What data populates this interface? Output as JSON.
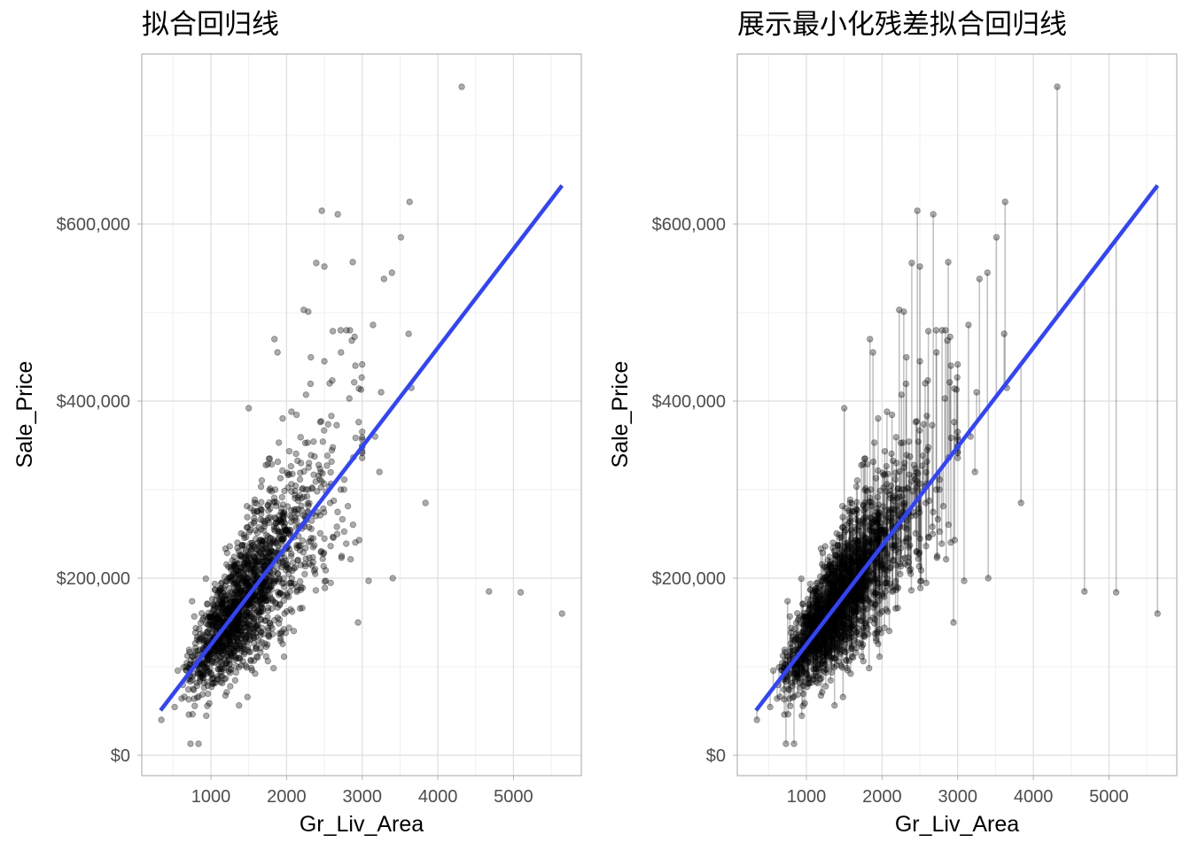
{
  "chart_data": [
    {
      "type": "scatter",
      "title": "拟合回归线",
      "xlabel": "Gr_Liv_Area",
      "ylabel": "Sale_Price",
      "show_residuals": false
    },
    {
      "type": "scatter",
      "title": "展示最小化残差拟合回归线",
      "xlabel": "Gr_Liv_Area",
      "ylabel": "Sale_Price",
      "show_residuals": true
    }
  ],
  "shared": {
    "xlim": [
      86,
      5897
    ],
    "ylim": [
      -23000,
      792000
    ],
    "xticks": [
      1000,
      2000,
      3000,
      4000,
      5000
    ],
    "xtick_labels": [
      "1000",
      "2000",
      "3000",
      "4000",
      "5000"
    ],
    "xminor": [
      500,
      1500,
      2500,
      3500,
      4500,
      5500
    ],
    "yticks": [
      0,
      200000,
      400000,
      600000
    ],
    "ytick_labels": [
      "$0",
      "$200,000",
      "$400,000",
      "$600,000"
    ],
    "yminor": [
      100000,
      300000,
      500000,
      700000
    ],
    "grid": true,
    "fit": {
      "intercept": 13290,
      "slope": 111.7,
      "x_range": [
        334,
        5642
      ],
      "color": "#3044ff"
    },
    "point_color": "#000000",
    "notable_points": [
      [
        4316,
        755000
      ],
      [
        3627,
        625000
      ],
      [
        2466,
        615000
      ],
      [
        2677,
        611000
      ],
      [
        2393,
        556000
      ],
      [
        2500,
        552000
      ],
      [
        2875,
        557000
      ],
      [
        3512,
        585000
      ],
      [
        3393,
        545000
      ],
      [
        3288,
        538000
      ],
      [
        2227,
        503000
      ],
      [
        2287,
        501000
      ],
      [
        3143,
        486000
      ],
      [
        3614,
        476000
      ],
      [
        3837,
        285000
      ],
      [
        4676,
        185000
      ],
      [
        5095,
        184000
      ],
      [
        5642,
        160000
      ],
      [
        3404,
        200000
      ],
      [
        3085,
        197000
      ],
      [
        2945,
        150000
      ],
      [
        3228,
        320000
      ],
      [
        2960,
        243000
      ],
      [
        730,
        13000
      ],
      [
        836,
        13000
      ],
      [
        345,
        40000
      ],
      [
        3250,
        410000
      ],
      [
        3170,
        360000
      ],
      [
        3650,
        415000
      ],
      [
        2612,
        479000
      ],
      [
        2720,
        455000
      ],
      [
        2570,
        420000
      ],
      [
        2830,
        403000
      ],
      [
        2910,
        440000
      ],
      [
        2500,
        445000
      ],
      [
        1840,
        470000
      ],
      [
        1880,
        455000
      ],
      [
        1500,
        392000
      ],
      [
        2065,
        388000
      ],
      [
        2985,
        413000
      ]
    ],
    "cloud": {
      "n": 1700,
      "x_center": 1450,
      "x_log_sd": 0.3,
      "noise_sd_fraction": 0.2,
      "seed": 7
    }
  }
}
